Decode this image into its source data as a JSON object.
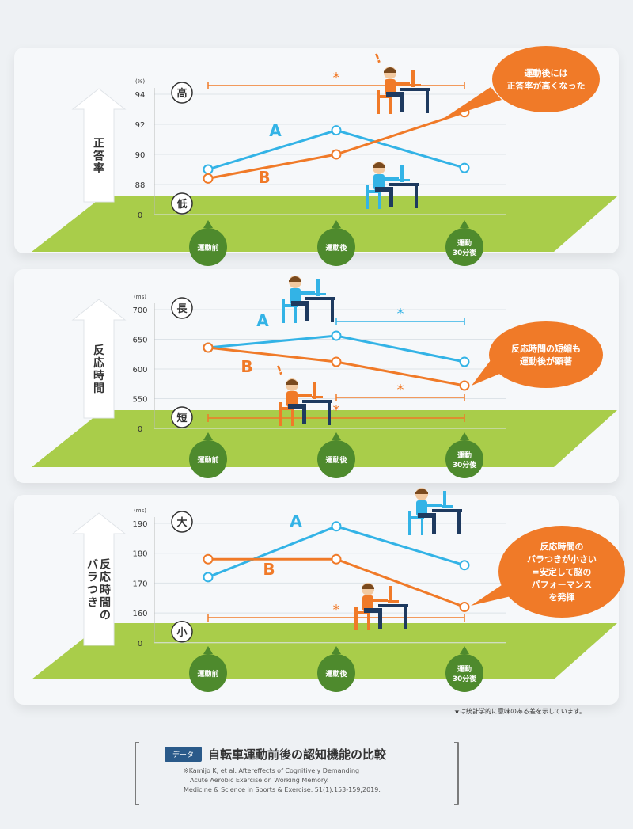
{
  "colors": {
    "A": "#33b3e6",
    "B": "#f07a28",
    "ground": "#a9cd4a",
    "node": "#4e8a2d",
    "arrow": "#ffffff"
  },
  "x_labels": [
    "運動前",
    "運動後",
    "運動\n30分後"
  ],
  "chart_data": [
    {
      "type": "line",
      "ylabel": "正答率",
      "unit": "(%)",
      "yticks": [
        94,
        92,
        90,
        88,
        0
      ],
      "hi_label": "高",
      "lo_label": "低",
      "categories": [
        "運動前",
        "運動後",
        "運動30分後"
      ],
      "series": [
        {
          "name": "A",
          "values": [
            89.0,
            91.6,
            89.1
          ]
        },
        {
          "name": "B",
          "values": [
            88.4,
            90.0,
            92.8
          ]
        }
      ],
      "significance": [
        {
          "from": 0,
          "to": 2,
          "color": "B",
          "mark": "*"
        }
      ],
      "callout": "運動後には\n正答率が高くなった"
    },
    {
      "type": "line",
      "ylabel": "反応時間",
      "unit": "(ms)",
      "yticks": [
        700,
        650,
        600,
        550,
        0
      ],
      "hi_label": "長",
      "lo_label": "短",
      "categories": [
        "運動前",
        "運動後",
        "運動30分後"
      ],
      "series": [
        {
          "name": "A",
          "values": [
            636,
            656,
            612
          ]
        },
        {
          "name": "B",
          "values": [
            636,
            612,
            572
          ]
        }
      ],
      "significance": [
        {
          "from": 1,
          "to": 2,
          "color": "A",
          "mark": "*"
        },
        {
          "from": 1,
          "to": 2,
          "color": "B",
          "mark": "*"
        },
        {
          "from": 0,
          "to": 2,
          "color": "B",
          "mark": "*"
        }
      ],
      "callout": "反応時間の短縮も\n運動後が顕著"
    },
    {
      "type": "line",
      "ylabel": "反応時間のバラつき",
      "unit": "(ms)",
      "yticks": [
        190,
        180,
        170,
        160,
        0
      ],
      "hi_label": "大",
      "lo_label": "小",
      "categories": [
        "運動前",
        "運動後",
        "運動30分後"
      ],
      "series": [
        {
          "name": "A",
          "values": [
            172,
            189,
            176
          ]
        },
        {
          "name": "B",
          "values": [
            178,
            178,
            162
          ]
        }
      ],
      "significance": [
        {
          "from": 0,
          "to": 2,
          "color": "B",
          "mark": "*"
        }
      ],
      "callout": "反応時間の\nバラつきが小さい\n=安定して脳の\nパフォーマンス\nを発揮"
    }
  ],
  "footnote": "★は統計学的に意味のある差を示しています。",
  "source": {
    "tag": "データ",
    "title": "自転車運動前後の認知機能の比較",
    "citation": [
      "※Kamijo K, et al. Aftereffects of Cognitively Demanding",
      "Acute Aerobic Exercise on Working Memory.",
      "Medicine & Science in Sports & Exercise. 51(1):153-159,2019."
    ]
  }
}
